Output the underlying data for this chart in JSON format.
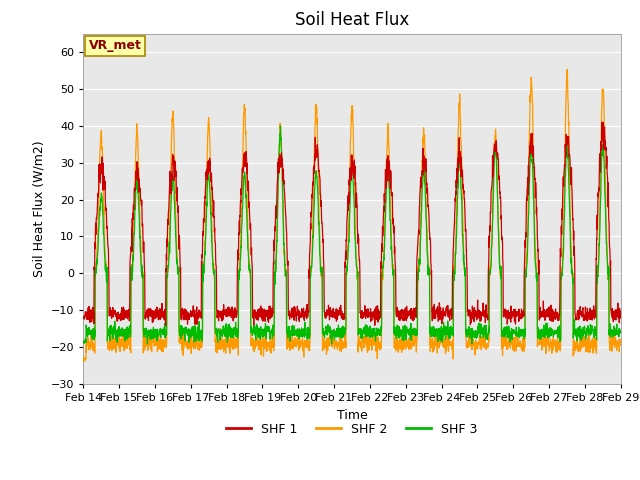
{
  "title": "Soil Heat Flux",
  "ylabel": "Soil Heat Flux (W/m2)",
  "xlabel": "Time",
  "ylim": [
    -30,
    65
  ],
  "yticks": [
    -30,
    -20,
    -10,
    0,
    10,
    20,
    30,
    40,
    50,
    60
  ],
  "xtick_labels": [
    "Feb 14",
    "Feb 15",
    "Feb 16",
    "Feb 17",
    "Feb 18",
    "Feb 19",
    "Feb 20",
    "Feb 21",
    "Feb 22",
    "Feb 23",
    "Feb 24",
    "Feb 25",
    "Feb 26",
    "Feb 27",
    "Feb 28",
    "Feb 29"
  ],
  "shf1_color": "#cc0000",
  "shf2_color": "#ff9900",
  "shf3_color": "#00bb00",
  "bg_color": "#e8e8e8",
  "plot_bg": "#d8d8d8",
  "annotation_text": "VR_met",
  "annotation_fg": "#8b0000",
  "annotation_bg": "#ffffaa",
  "annotation_edge": "#aa8800",
  "legend_labels": [
    "SHF 1",
    "SHF 2",
    "SHF 3"
  ],
  "title_fontsize": 12,
  "label_fontsize": 9,
  "tick_fontsize": 8,
  "n_days": 15,
  "pts_per_day": 144
}
